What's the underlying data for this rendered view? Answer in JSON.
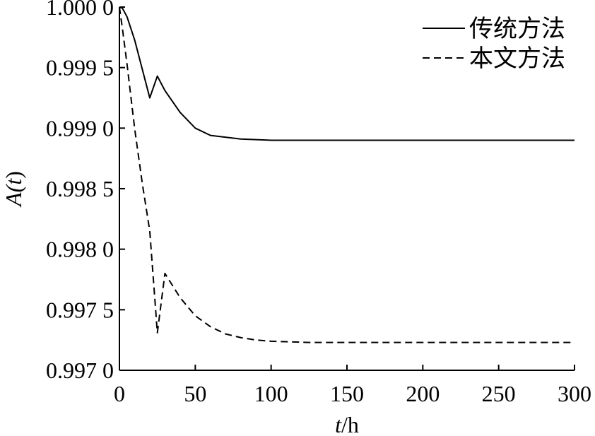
{
  "chart_data": {
    "type": "line",
    "xlabel_var": "t",
    "xlabel_unit": "/h",
    "ylabel_pre": "A(",
    "ylabel_var": "t",
    "ylabel_post": ")",
    "xlim": [
      0,
      300
    ],
    "ylim": [
      0.997,
      1.0
    ],
    "x_ticks": [
      0,
      50,
      100,
      150,
      200,
      250,
      300
    ],
    "x_tick_labels": [
      "0",
      "50",
      "100",
      "150",
      "200",
      "250",
      "300"
    ],
    "y_ticks": [
      0.997,
      0.9975,
      0.998,
      0.9985,
      0.999,
      0.9995,
      1.0
    ],
    "y_tick_labels": [
      "0.997 0",
      "0.997 5",
      "0.998 0",
      "0.998 5",
      "0.999 0",
      "0.999 5",
      "1.000 0"
    ],
    "grid": false,
    "legend_position": "top-right",
    "series": [
      {
        "name": "传统方法",
        "style": "solid",
        "color": "#000000",
        "x": [
          0,
          2,
          5,
          10,
          15,
          20,
          25,
          30,
          40,
          50,
          60,
          80,
          100,
          150,
          200,
          250,
          300
        ],
        "y": [
          1.0,
          0.99999,
          0.99992,
          0.99973,
          0.99949,
          0.99925,
          0.99943,
          0.99931,
          0.99913,
          0.999,
          0.99894,
          0.99891,
          0.9989,
          0.9989,
          0.9989,
          0.9989,
          0.9989
        ]
      },
      {
        "name": "本文方法",
        "style": "dashed",
        "color": "#000000",
        "x": [
          0,
          2,
          5,
          10,
          15,
          20,
          25,
          30,
          40,
          50,
          60,
          70,
          80,
          90,
          100,
          125,
          150,
          200,
          250,
          300
        ],
        "y": [
          1.0,
          0.99982,
          0.99953,
          0.999,
          0.99855,
          0.99815,
          0.99731,
          0.9978,
          0.9976,
          0.99745,
          0.99736,
          0.9973,
          0.99727,
          0.99725,
          0.99724,
          0.99723,
          0.99723,
          0.99723,
          0.99723,
          0.99723
        ]
      }
    ]
  }
}
